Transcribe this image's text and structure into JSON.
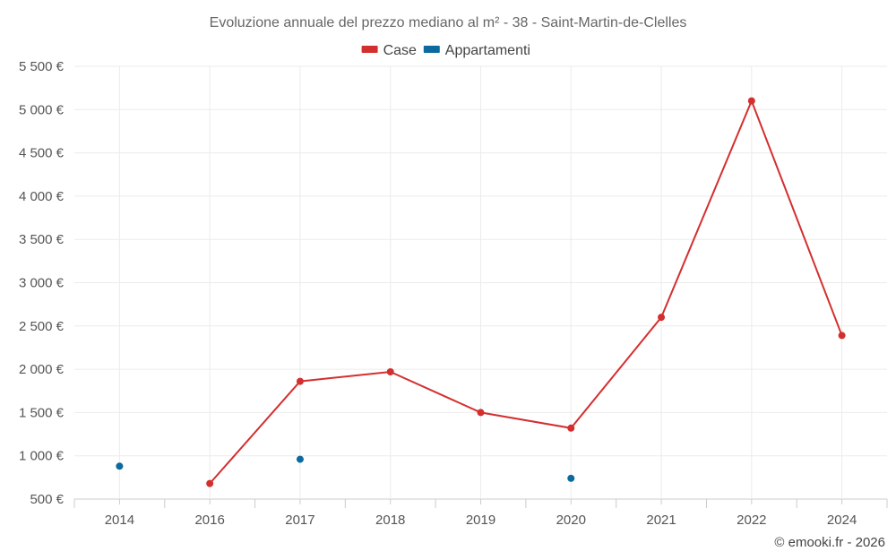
{
  "chart_data": {
    "type": "line",
    "title": "Evoluzione annuale del prezzo mediano al m² - 38 - Saint-Martin-de-Clelles",
    "categories": [
      "2014",
      "2016",
      "2017",
      "2018",
      "2019",
      "2020",
      "2021",
      "2022",
      "2024"
    ],
    "series": [
      {
        "name": "Case",
        "color": "#d32f2f",
        "values": [
          null,
          680,
          1860,
          1970,
          1500,
          1320,
          2600,
          5100,
          2390
        ]
      },
      {
        "name": "Appartamenti",
        "color": "#0d6a9e",
        "values": [
          880,
          null,
          960,
          null,
          null,
          740,
          null,
          null,
          null
        ]
      }
    ],
    "ylim": [
      500,
      5500
    ],
    "yticks": [
      500,
      1000,
      1500,
      2000,
      2500,
      3000,
      3500,
      4000,
      4500,
      5000,
      5500
    ],
    "ytick_labels": [
      "500 €",
      "1 000 €",
      "1 500 €",
      "2 000 €",
      "2 500 €",
      "3 000 €",
      "3 500 €",
      "4 000 €",
      "4 500 €",
      "5 000 €",
      "5 500 €"
    ],
    "xlabel": "",
    "ylabel": "",
    "legend_position": "top-center",
    "grid": true
  },
  "credit": "© emooki.fr - 2026"
}
